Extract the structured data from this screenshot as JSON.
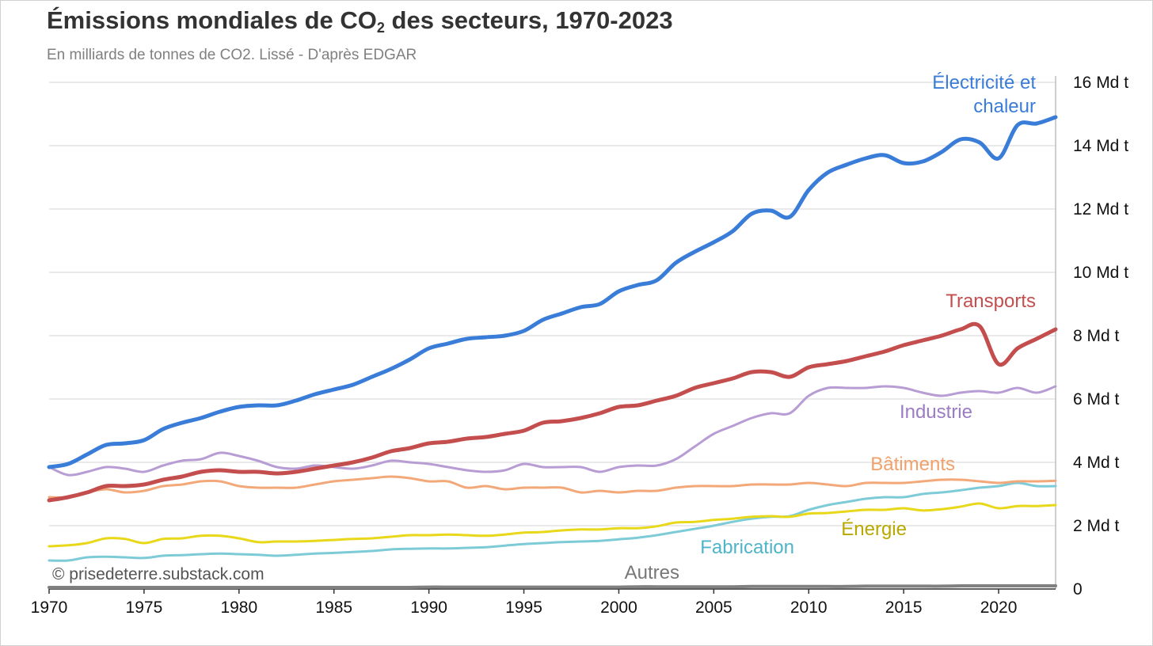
{
  "chart": {
    "title_main": "Émissions mondiales de CO",
    "title_sub": "2",
    "title_rest": " des secteurs, 1970-2023",
    "subtitle": "En milliards de tonnes de CO2. Lissé - D'après EDGAR",
    "credit": "© prisedeterre.substack.com"
  },
  "chart_data": {
    "type": "line",
    "title": "Émissions mondiales de CO2 des secteurs, 1970-2023",
    "subtitle": "En milliards de tonnes de CO2. Lissé - D'après EDGAR",
    "xlabel": "",
    "ylabel": "",
    "xlim": [
      1970,
      2023
    ],
    "ylim": [
      0,
      16
    ],
    "grid": true,
    "legend": "direct labels",
    "x_ticks": [
      "1970",
      "1975",
      "1980",
      "1985",
      "1990",
      "1995",
      "2000",
      "2005",
      "2010",
      "2015",
      "2020"
    ],
    "y_ticks": [
      {
        "value": 0,
        "label": "0"
      },
      {
        "value": 2,
        "label": "2 Md t"
      },
      {
        "value": 4,
        "label": "4 Md t"
      },
      {
        "value": 6,
        "label": "6 Md t"
      },
      {
        "value": 8,
        "label": "8 Md t"
      },
      {
        "value": 10,
        "label": "10 Md t"
      },
      {
        "value": 12,
        "label": "12 Md t"
      },
      {
        "value": 14,
        "label": "14 Md t"
      },
      {
        "value": 16,
        "label": "16 Md t"
      }
    ],
    "x": [
      1970,
      1971,
      1972,
      1973,
      1974,
      1975,
      1976,
      1977,
      1978,
      1979,
      1980,
      1981,
      1982,
      1983,
      1984,
      1985,
      1986,
      1987,
      1988,
      1989,
      1990,
      1991,
      1992,
      1993,
      1994,
      1995,
      1996,
      1997,
      1998,
      1999,
      2000,
      2001,
      2002,
      2003,
      2004,
      2005,
      2006,
      2007,
      2008,
      2009,
      2010,
      2011,
      2012,
      2013,
      2014,
      2015,
      2016,
      2017,
      2018,
      2019,
      2020,
      2021,
      2022,
      2023
    ],
    "series": [
      {
        "name": "Électricité et chaleur",
        "label_lines": [
          "Électricité et",
          "chaleur"
        ],
        "color": "#3a7dd8",
        "width": 5,
        "values": [
          3.85,
          3.95,
          4.25,
          4.55,
          4.6,
          4.7,
          5.05,
          5.25,
          5.4,
          5.6,
          5.75,
          5.8,
          5.8,
          5.95,
          6.15,
          6.3,
          6.45,
          6.7,
          6.95,
          7.25,
          7.6,
          7.75,
          7.9,
          7.95,
          8.0,
          8.15,
          8.5,
          8.7,
          8.9,
          9.0,
          9.4,
          9.6,
          9.75,
          10.3,
          10.65,
          10.95,
          11.3,
          11.85,
          11.95,
          11.75,
          12.6,
          13.15,
          13.4,
          13.6,
          13.7,
          13.45,
          13.5,
          13.8,
          14.2,
          14.1,
          13.6,
          14.65,
          14.7,
          14.9
        ]
      },
      {
        "name": "Transports",
        "label_lines": [
          "Transports"
        ],
        "color": "#c44e4e",
        "width": 5,
        "values": [
          2.8,
          2.9,
          3.05,
          3.25,
          3.25,
          3.3,
          3.45,
          3.55,
          3.7,
          3.75,
          3.7,
          3.7,
          3.65,
          3.7,
          3.8,
          3.9,
          4.0,
          4.15,
          4.35,
          4.45,
          4.6,
          4.65,
          4.75,
          4.8,
          4.9,
          5.0,
          5.25,
          5.3,
          5.4,
          5.55,
          5.75,
          5.8,
          5.95,
          6.1,
          6.35,
          6.5,
          6.65,
          6.85,
          6.85,
          6.7,
          7.0,
          7.1,
          7.2,
          7.35,
          7.5,
          7.7,
          7.85,
          8.0,
          8.2,
          8.3,
          7.1,
          7.6,
          7.9,
          8.2
        ]
      },
      {
        "name": "Industrie",
        "label_lines": [
          "Industrie"
        ],
        "color": "#b89cd4",
        "width": 3,
        "values": [
          3.85,
          3.6,
          3.7,
          3.85,
          3.8,
          3.7,
          3.9,
          4.05,
          4.1,
          4.3,
          4.2,
          4.05,
          3.85,
          3.8,
          3.9,
          3.85,
          3.8,
          3.9,
          4.05,
          4.0,
          3.95,
          3.85,
          3.75,
          3.7,
          3.75,
          3.95,
          3.85,
          3.85,
          3.85,
          3.7,
          3.85,
          3.9,
          3.9,
          4.1,
          4.5,
          4.9,
          5.15,
          5.4,
          5.55,
          5.55,
          6.1,
          6.35,
          6.35,
          6.35,
          6.4,
          6.35,
          6.2,
          6.1,
          6.2,
          6.25,
          6.2,
          6.35,
          6.2,
          6.4
        ]
      },
      {
        "name": "Bâtiments",
        "label_lines": [
          "Bâtiments"
        ],
        "color": "#f2a878",
        "width": 3,
        "values": [
          2.9,
          2.9,
          3.05,
          3.15,
          3.05,
          3.1,
          3.25,
          3.3,
          3.4,
          3.4,
          3.25,
          3.2,
          3.2,
          3.2,
          3.3,
          3.4,
          3.45,
          3.5,
          3.55,
          3.5,
          3.4,
          3.4,
          3.2,
          3.25,
          3.15,
          3.2,
          3.2,
          3.2,
          3.05,
          3.1,
          3.05,
          3.1,
          3.1,
          3.2,
          3.25,
          3.25,
          3.25,
          3.3,
          3.3,
          3.3,
          3.35,
          3.3,
          3.25,
          3.35,
          3.35,
          3.35,
          3.4,
          3.45,
          3.45,
          3.4,
          3.35,
          3.4,
          3.4,
          3.42
        ]
      },
      {
        "name": "Fabrication",
        "label_lines": [
          "Fabrication"
        ],
        "color": "#7ecbd8",
        "width": 3,
        "values": [
          0.9,
          0.9,
          1.0,
          1.02,
          1.0,
          0.98,
          1.05,
          1.07,
          1.1,
          1.12,
          1.1,
          1.08,
          1.05,
          1.08,
          1.12,
          1.14,
          1.17,
          1.2,
          1.25,
          1.27,
          1.28,
          1.28,
          1.3,
          1.32,
          1.37,
          1.42,
          1.45,
          1.48,
          1.5,
          1.52,
          1.57,
          1.62,
          1.7,
          1.8,
          1.9,
          2.0,
          2.12,
          2.22,
          2.28,
          2.3,
          2.5,
          2.65,
          2.75,
          2.85,
          2.9,
          2.9,
          3.0,
          3.05,
          3.12,
          3.2,
          3.25,
          3.35,
          3.25,
          3.25
        ]
      },
      {
        "name": "Énergie",
        "label_lines": [
          "Énergie"
        ],
        "color": "#e8d819",
        "width": 3,
        "values": [
          1.35,
          1.38,
          1.45,
          1.6,
          1.58,
          1.45,
          1.58,
          1.6,
          1.68,
          1.68,
          1.6,
          1.48,
          1.5,
          1.5,
          1.52,
          1.55,
          1.58,
          1.6,
          1.65,
          1.7,
          1.7,
          1.72,
          1.7,
          1.68,
          1.72,
          1.78,
          1.8,
          1.85,
          1.88,
          1.88,
          1.92,
          1.92,
          1.98,
          2.1,
          2.12,
          2.18,
          2.22,
          2.28,
          2.3,
          2.28,
          2.38,
          2.4,
          2.45,
          2.5,
          2.5,
          2.55,
          2.48,
          2.52,
          2.6,
          2.7,
          2.55,
          2.62,
          2.62,
          2.65
        ]
      },
      {
        "name": "Autres",
        "label_lines": [
          "Autres"
        ],
        "color": "#808080",
        "width": 4,
        "values": [
          0.05,
          0.05,
          0.05,
          0.05,
          0.05,
          0.05,
          0.05,
          0.05,
          0.05,
          0.05,
          0.05,
          0.05,
          0.05,
          0.05,
          0.05,
          0.05,
          0.05,
          0.05,
          0.05,
          0.05,
          0.06,
          0.06,
          0.06,
          0.06,
          0.06,
          0.06,
          0.06,
          0.06,
          0.06,
          0.06,
          0.06,
          0.07,
          0.07,
          0.07,
          0.07,
          0.07,
          0.07,
          0.08,
          0.08,
          0.08,
          0.08,
          0.08,
          0.08,
          0.09,
          0.09,
          0.09,
          0.09,
          0.09,
          0.1,
          0.1,
          0.1,
          0.1,
          0.1,
          0.1
        ]
      }
    ]
  }
}
